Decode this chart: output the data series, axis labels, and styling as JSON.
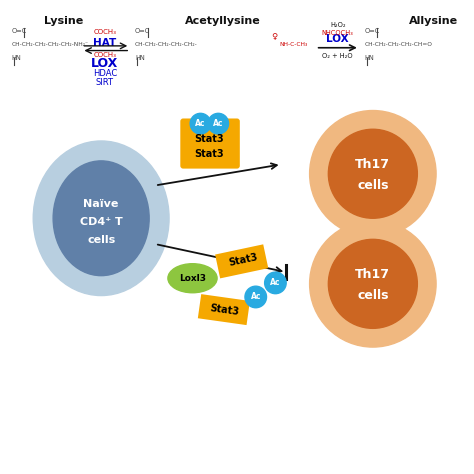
{
  "bg_color": "#ffffff",
  "lysine_label": "Lysine",
  "acetyllysine_label": "Acetyllysine",
  "allysine_label": "Allysine",
  "hat_label": "HAT",
  "lox_label1": "LOX",
  "lox_label2": "LOX",
  "hdac_label": "HDAC",
  "sirt_label": "SIRT",
  "coch3_top": "COCH₃",
  "coch3_bot": "COCH₃",
  "h2o2_label": "H₂O₂",
  "nhcoch3_label": "NHCOCH₃",
  "o2_h2o_label": "O₂ + H₂O",
  "naive_label1": "Naïve",
  "naive_label2": "CD4⁺ T",
  "naive_label3": "cells",
  "th17_label1": "Th17",
  "th17_label2": "cells",
  "stat3_label": "Stat3",
  "loxl3_label": "Loxl3",
  "ac_label": "Ac",
  "stat3_color": "#f5a800",
  "ac_color": "#29aae1",
  "loxl3_color": "#8dc63f",
  "naive_outer": "#b8cfe0",
  "naive_inner": "#6080a8",
  "th17_outer": "#f0b880",
  "th17_inner": "#cc6622",
  "blue_text": "#0000cc",
  "red_text": "#cc0000",
  "black_text": "#111111",
  "gray_struct": "#444444"
}
